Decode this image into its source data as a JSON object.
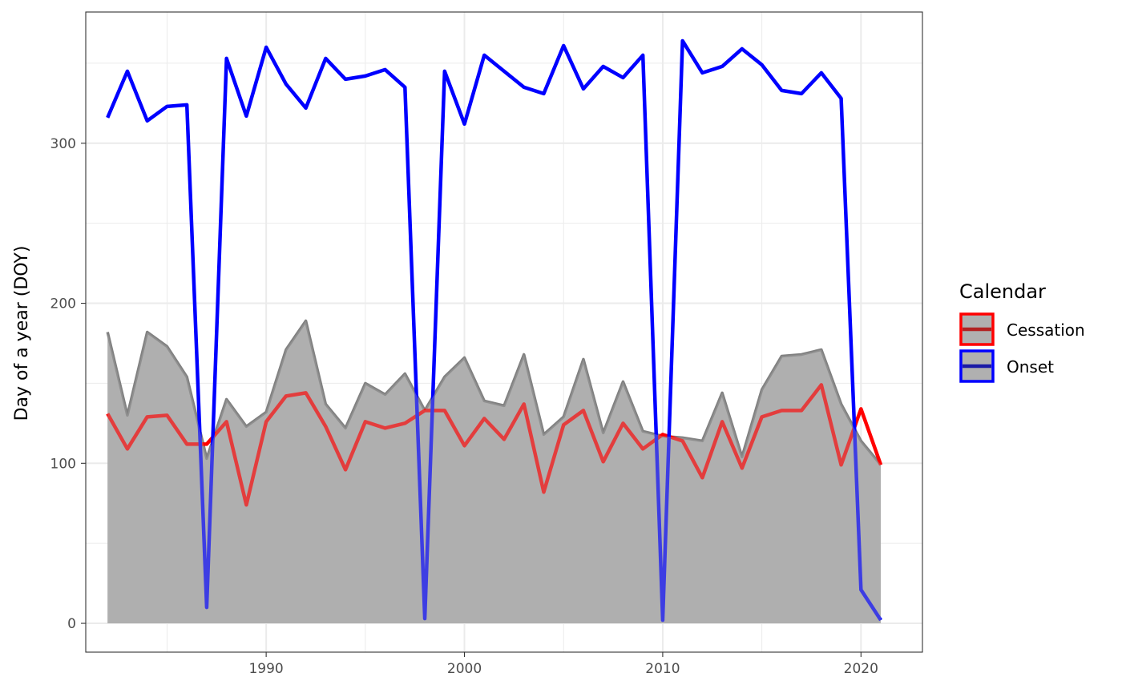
{
  "chart_data": {
    "type": "line",
    "title": "",
    "xlabel": "",
    "ylabel": "Day of a year (DOY)",
    "xlim": [
      1980.9,
      2023.1
    ],
    "ylim": [
      -18,
      382
    ],
    "x_ticks": [
      1990,
      2000,
      2010,
      2020
    ],
    "y_ticks": [
      0,
      100,
      200,
      300
    ],
    "grid": true,
    "legend_position": "right",
    "legend_title": "Calendar",
    "x": [
      1982,
      1983,
      1984,
      1985,
      1986,
      1987,
      1988,
      1989,
      1990,
      1991,
      1992,
      1993,
      1994,
      1995,
      1996,
      1997,
      1998,
      1999,
      2000,
      2001,
      2002,
      2003,
      2004,
      2005,
      2006,
      2007,
      2008,
      2009,
      2010,
      2011,
      2012,
      2013,
      2014,
      2015,
      2016,
      2017,
      2018,
      2019,
      2020,
      2021
    ],
    "series": [
      {
        "name": "Cessation",
        "color": "#ff0000",
        "values": [
          131,
          109,
          129,
          130,
          112,
          112,
          126,
          74,
          126,
          142,
          144,
          123,
          96,
          126,
          122,
          125,
          133,
          133,
          111,
          128,
          115,
          137,
          82,
          124,
          133,
          101,
          125,
          109,
          118,
          114,
          91,
          126,
          97,
          129,
          133,
          133,
          149,
          99,
          134,
          99
        ]
      },
      {
        "name": "Onset",
        "color": "#0000ff",
        "values": [
          316,
          345,
          314,
          323,
          324,
          10,
          353,
          317,
          360,
          337,
          322,
          353,
          340,
          342,
          346,
          335,
          3,
          345,
          312,
          355,
          345,
          335,
          331,
          361,
          334,
          348,
          341,
          355,
          2,
          364,
          344,
          348,
          359,
          349,
          333,
          331,
          344,
          328,
          21,
          2
        ]
      }
    ],
    "area": {
      "fill": "#b0b0b0",
      "line_color": "#808080",
      "values": [
        182,
        130,
        182,
        173,
        154,
        103,
        140,
        123,
        132,
        171,
        189,
        137,
        122,
        150,
        143,
        156,
        133,
        154,
        166,
        139,
        136,
        168,
        118,
        129,
        165,
        119,
        151,
        120,
        117,
        116,
        114,
        144,
        104,
        146,
        167,
        168,
        171,
        137,
        114,
        99
      ]
    }
  }
}
